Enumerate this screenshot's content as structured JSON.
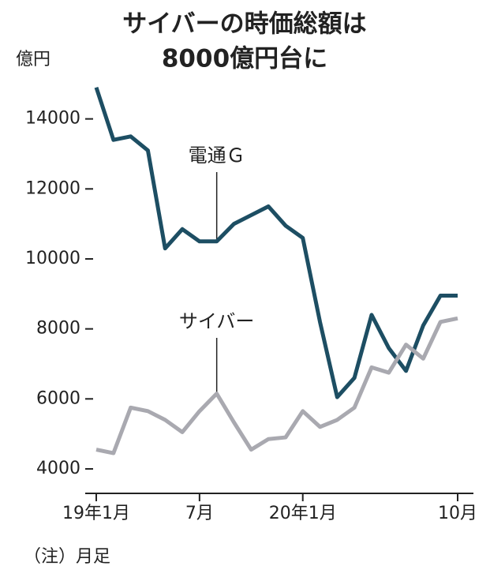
{
  "chart_data": {
    "type": "line",
    "title": [
      "サイバーの時価総額は",
      "8000億円台に"
    ],
    "y_unit": "億円",
    "note": "（注）月足",
    "categories": [
      "19年1月",
      null,
      null,
      null,
      null,
      null,
      "7月",
      null,
      null,
      null,
      null,
      null,
      "20年1月",
      null,
      null,
      null,
      null,
      null,
      null,
      null,
      null,
      "10月"
    ],
    "series": [
      {
        "name": "電通Ｇ",
        "color": "#1d4e63",
        "values": [
          14900,
          13400,
          13500,
          13100,
          10300,
          10850,
          10500,
          10500,
          11000,
          11250,
          11500,
          10950,
          10600,
          8200,
          6050,
          6600,
          8400,
          7450,
          6800,
          8100,
          8950,
          8950
        ]
      },
      {
        "name": "サイバー",
        "color": "#a9a9b0",
        "values": [
          4550,
          4450,
          5750,
          5650,
          5400,
          5050,
          5650,
          6150,
          5330,
          4550,
          4850,
          4900,
          5650,
          5200,
          5400,
          5750,
          6900,
          6750,
          7550,
          7150,
          8200,
          8300
        ]
      }
    ],
    "ylim": [
      3300,
      15300
    ],
    "yticks": [
      4000,
      6000,
      8000,
      10000,
      12000,
      14000
    ],
    "grid": false
  }
}
